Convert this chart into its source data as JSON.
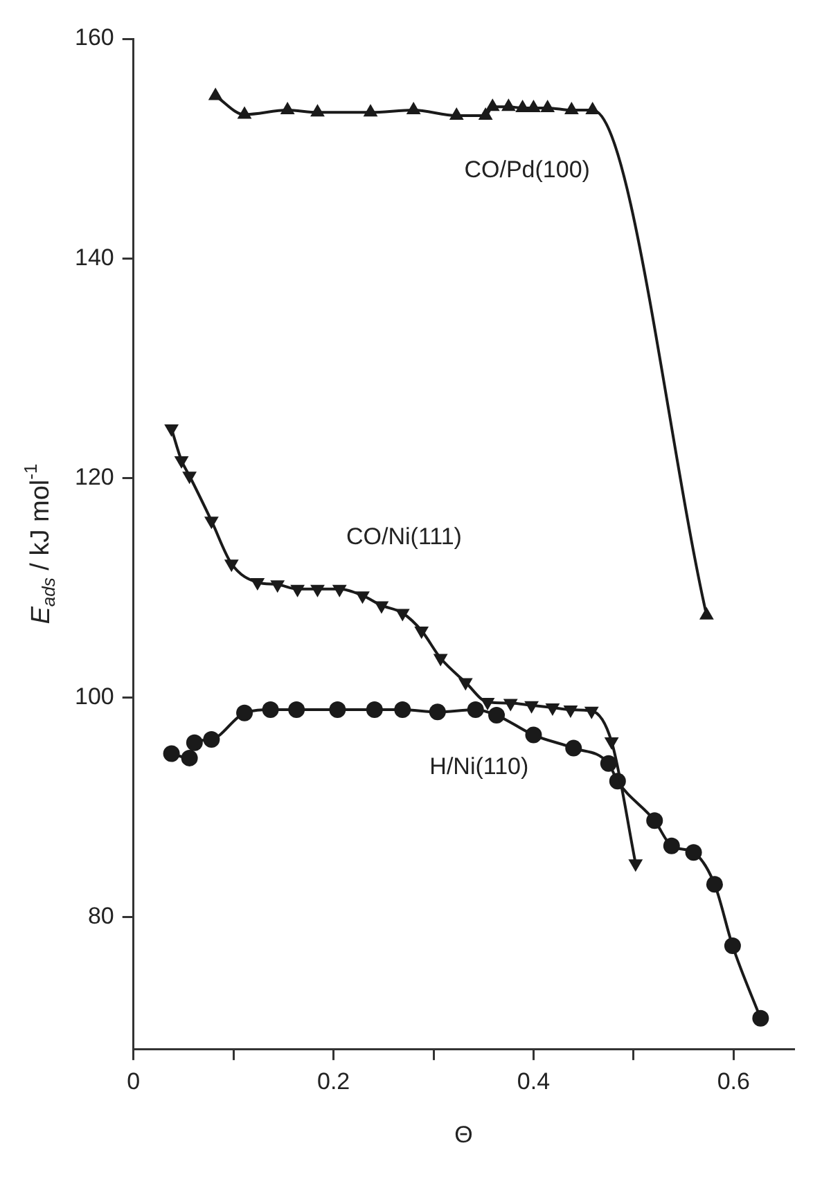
{
  "chart_data": {
    "type": "line",
    "xlabel": "Θ",
    "ylabel": "E$_{ads}$ / kJ mol$^{-1}$",
    "xlim": [
      0,
      0.66
    ],
    "ylim": [
      68,
      160
    ],
    "xticks": [
      0,
      {
        "value": 0.1,
        "label": null
      },
      0.2,
      {
        "value": 0.3,
        "label": null
      },
      0.4,
      {
        "value": 0.5,
        "label": null
      },
      0.6
    ],
    "yticks": [
      80,
      100,
      120,
      140,
      160
    ],
    "grid": false,
    "legend": false,
    "line_style": "solid",
    "series": [
      {
        "name": "CO/Pd(100)",
        "color": "#1a1a1a",
        "marker": "triangle",
        "x": [
          0.082,
          0.111,
          0.154,
          0.184,
          0.237,
          0.28,
          0.323,
          0.352,
          0.359,
          0.375,
          0.389,
          0.4,
          0.414,
          0.438,
          0.459,
          0.573
        ],
        "values": [
          154.8,
          153.1,
          153.5,
          153.3,
          153.3,
          153.5,
          153.0,
          153.0,
          153.8,
          153.8,
          153.7,
          153.7,
          153.7,
          153.5,
          153.5,
          107.5
        ]
      },
      {
        "name": "CO/Ni(111)",
        "color": "#1a1a1a",
        "marker": "triangle-down",
        "x": [
          0.038,
          0.048,
          0.056,
          0.078,
          0.098,
          0.124,
          0.144,
          0.164,
          0.184,
          0.206,
          0.229,
          0.248,
          0.269,
          0.288,
          0.307,
          0.332,
          0.354,
          0.377,
          0.398,
          0.419,
          0.437,
          0.458,
          0.478,
          0.502
        ],
        "values": [
          124.5,
          121.6,
          120.2,
          116.1,
          112.2,
          110.5,
          110.3,
          109.9,
          109.9,
          109.9,
          109.3,
          108.4,
          107.7,
          106.1,
          103.6,
          101.4,
          99.6,
          99.5,
          99.3,
          99.1,
          98.9,
          98.8,
          96.0,
          84.9
        ]
      },
      {
        "name": "H/Ni(110)",
        "color": "#1a1a1a",
        "marker": "circle",
        "x": [
          0.038,
          0.056,
          0.061,
          0.078,
          0.111,
          0.137,
          0.163,
          0.204,
          0.241,
          0.269,
          0.304,
          0.342,
          0.363,
          0.4,
          0.44,
          0.475,
          0.484,
          0.521,
          0.538,
          0.56,
          0.581,
          0.599,
          0.627
        ],
        "values": [
          94.9,
          94.5,
          95.9,
          96.2,
          98.6,
          98.9,
          98.9,
          98.9,
          98.9,
          98.9,
          98.7,
          98.9,
          98.4,
          96.6,
          95.4,
          94.0,
          92.4,
          88.8,
          86.5,
          85.9,
          83.0,
          77.4,
          70.8
        ]
      }
    ]
  }
}
